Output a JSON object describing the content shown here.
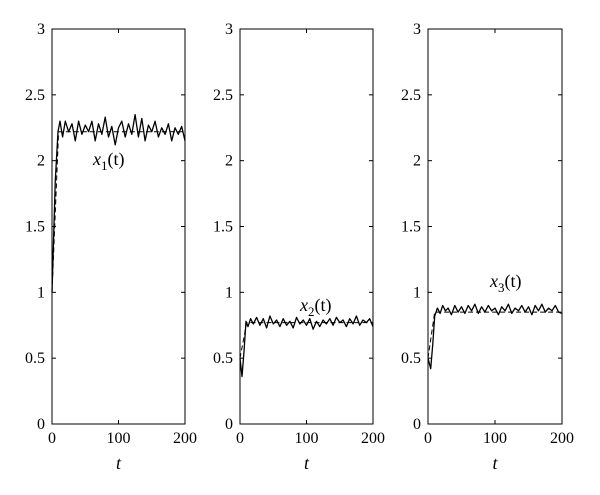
{
  "chart_data": [
    {
      "type": "line",
      "xlabel": "t",
      "xlim": [
        0,
        200
      ],
      "ylim": [
        0,
        3
      ],
      "xticks": [
        0,
        100,
        200
      ],
      "yticks": [
        0,
        0.5,
        1,
        1.5,
        2,
        2.5,
        3
      ],
      "annotation": {
        "base": "x",
        "sub": "1",
        "arg": "(t)"
      },
      "series": [
        {
          "style": "solid",
          "x": [
            0,
            5,
            9,
            12,
            16,
            20,
            25,
            30,
            35,
            40,
            45,
            50,
            55,
            60,
            65,
            70,
            75,
            80,
            85,
            90,
            95,
            100,
            105,
            110,
            115,
            120,
            125,
            130,
            135,
            140,
            145,
            150,
            155,
            160,
            165,
            170,
            175,
            180,
            185,
            190,
            195,
            200
          ],
          "y": [
            1.0,
            1.85,
            2.22,
            2.3,
            2.18,
            2.3,
            2.22,
            2.28,
            2.15,
            2.3,
            2.2,
            2.27,
            2.22,
            2.3,
            2.15,
            2.28,
            2.2,
            2.33,
            2.18,
            2.26,
            2.12,
            2.25,
            2.3,
            2.18,
            2.28,
            2.2,
            2.35,
            2.18,
            2.32,
            2.15,
            2.27,
            2.22,
            2.3,
            2.18,
            2.25,
            2.2,
            2.28,
            2.15,
            2.25,
            2.2,
            2.26,
            2.15
          ]
        },
        {
          "style": "dashed",
          "x": [
            0,
            10,
            200
          ],
          "y": [
            1.0,
            2.22,
            2.22
          ]
        }
      ]
    },
    {
      "type": "line",
      "xlabel": "t",
      "xlim": [
        0,
        200
      ],
      "ylim": [
        0,
        3
      ],
      "xticks": [
        0,
        100,
        200
      ],
      "yticks": [
        0,
        0.5,
        1,
        1.5,
        2,
        2.5,
        3
      ],
      "annotation": {
        "base": "x",
        "sub": "2",
        "arg": "(t)"
      },
      "series": [
        {
          "style": "solid",
          "x": [
            0,
            3,
            6,
            9,
            12,
            16,
            20,
            25,
            30,
            35,
            40,
            45,
            50,
            55,
            60,
            65,
            70,
            75,
            80,
            85,
            90,
            95,
            100,
            105,
            110,
            115,
            120,
            125,
            130,
            135,
            140,
            145,
            150,
            155,
            160,
            165,
            170,
            175,
            180,
            185,
            190,
            195,
            200
          ],
          "y": [
            0.5,
            0.36,
            0.55,
            0.78,
            0.74,
            0.8,
            0.76,
            0.81,
            0.75,
            0.8,
            0.73,
            0.82,
            0.76,
            0.79,
            0.74,
            0.8,
            0.75,
            0.78,
            0.73,
            0.81,
            0.76,
            0.79,
            0.75,
            0.8,
            0.72,
            0.78,
            0.74,
            0.79,
            0.76,
            0.8,
            0.75,
            0.81,
            0.77,
            0.79,
            0.74,
            0.8,
            0.76,
            0.82,
            0.75,
            0.79,
            0.77,
            0.8,
            0.74
          ]
        },
        {
          "style": "dashed",
          "x": [
            0,
            10,
            200
          ],
          "y": [
            0.5,
            0.77,
            0.77
          ]
        }
      ]
    },
    {
      "type": "line",
      "xlabel": "t",
      "xlim": [
        0,
        200
      ],
      "ylim": [
        0,
        3
      ],
      "xticks": [
        0,
        100,
        200
      ],
      "yticks": [
        0,
        0.5,
        1,
        1.5,
        2,
        2.5,
        3
      ],
      "annotation": {
        "base": "x",
        "sub": "3",
        "arg": "(t)"
      },
      "series": [
        {
          "style": "solid",
          "x": [
            0,
            4,
            7,
            10,
            14,
            18,
            22,
            26,
            30,
            35,
            40,
            45,
            50,
            55,
            60,
            65,
            70,
            75,
            80,
            85,
            90,
            95,
            100,
            105,
            110,
            115,
            120,
            125,
            130,
            135,
            140,
            145,
            150,
            155,
            160,
            165,
            170,
            175,
            180,
            185,
            190,
            195,
            200
          ],
          "y": [
            0.5,
            0.42,
            0.6,
            0.82,
            0.88,
            0.84,
            0.9,
            0.86,
            0.88,
            0.83,
            0.9,
            0.85,
            0.89,
            0.84,
            0.9,
            0.86,
            0.91,
            0.84,
            0.89,
            0.85,
            0.9,
            0.86,
            0.88,
            0.83,
            0.89,
            0.86,
            0.91,
            0.84,
            0.88,
            0.86,
            0.9,
            0.85,
            0.89,
            0.83,
            0.9,
            0.86,
            0.91,
            0.85,
            0.88,
            0.86,
            0.9,
            0.85,
            0.84
          ]
        },
        {
          "style": "dashed",
          "x": [
            0,
            10,
            200
          ],
          "y": [
            0.5,
            0.85,
            0.85
          ]
        }
      ]
    }
  ]
}
